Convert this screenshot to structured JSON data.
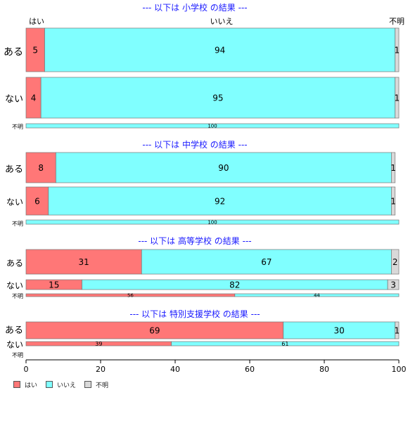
{
  "chart_data": {
    "type": "bar",
    "orientation": "horizontal",
    "stacked": true,
    "xlim": [
      0,
      100
    ],
    "xticks": [
      0,
      20,
      40,
      60,
      80,
      100
    ],
    "legend_position": "bottom-left",
    "series": [
      {
        "name": "はい",
        "color": "#FF7777"
      },
      {
        "name": "いいえ",
        "color": "#80FFFF"
      },
      {
        "name": "不明",
        "color": "#D9D9D9"
      }
    ],
    "top_header": [
      "はい",
      "いいえ",
      "不明"
    ],
    "panels": [
      {
        "title": "--- 以下は 小学校 の結果 ---",
        "rows": [
          {
            "label": "ある",
            "values": [
              5,
              94,
              1
            ],
            "labels": [
              "5",
              "94",
              "1"
            ]
          },
          {
            "label": "ない",
            "values": [
              4,
              95,
              1
            ],
            "labels": [
              "4",
              "95",
              "1"
            ]
          },
          {
            "label": "不明",
            "values": [
              0,
              100,
              0
            ],
            "labels": [
              "",
              "100",
              ""
            ]
          }
        ]
      },
      {
        "title": "--- 以下は 中学校 の結果 ---",
        "rows": [
          {
            "label": "ある",
            "values": [
              8,
              90,
              1
            ],
            "labels": [
              "8",
              "90",
              "1"
            ]
          },
          {
            "label": "ない",
            "values": [
              6,
              92,
              1
            ],
            "labels": [
              "6",
              "92",
              "1"
            ]
          },
          {
            "label": "不明",
            "values": [
              0,
              100,
              0
            ],
            "labels": [
              "",
              "100",
              ""
            ]
          }
        ]
      },
      {
        "title": "--- 以下は 高等学校 の結果 ---",
        "rows": [
          {
            "label": "ある",
            "values": [
              31,
              67,
              2
            ],
            "labels": [
              "31",
              "67",
              "2"
            ]
          },
          {
            "label": "ない",
            "values": [
              15,
              82,
              3
            ],
            "labels": [
              "15",
              "82",
              "3"
            ]
          },
          {
            "label": "不明",
            "values": [
              56,
              44,
              0
            ],
            "labels": [
              "56",
              "44",
              ""
            ]
          }
        ]
      },
      {
        "title": "--- 以下は 特別支援学校 の結果 ---",
        "rows": [
          {
            "label": "ある",
            "values": [
              69,
              30,
              1
            ],
            "labels": [
              "69",
              "30",
              "1"
            ]
          },
          {
            "label": "ない",
            "values": [
              39,
              61,
              0
            ],
            "labels": [
              "39",
              "61",
              ""
            ]
          },
          {
            "label": "不明",
            "values": [
              0,
              0,
              0
            ],
            "labels": [
              "",
              "",
              ""
            ]
          }
        ]
      }
    ]
  }
}
